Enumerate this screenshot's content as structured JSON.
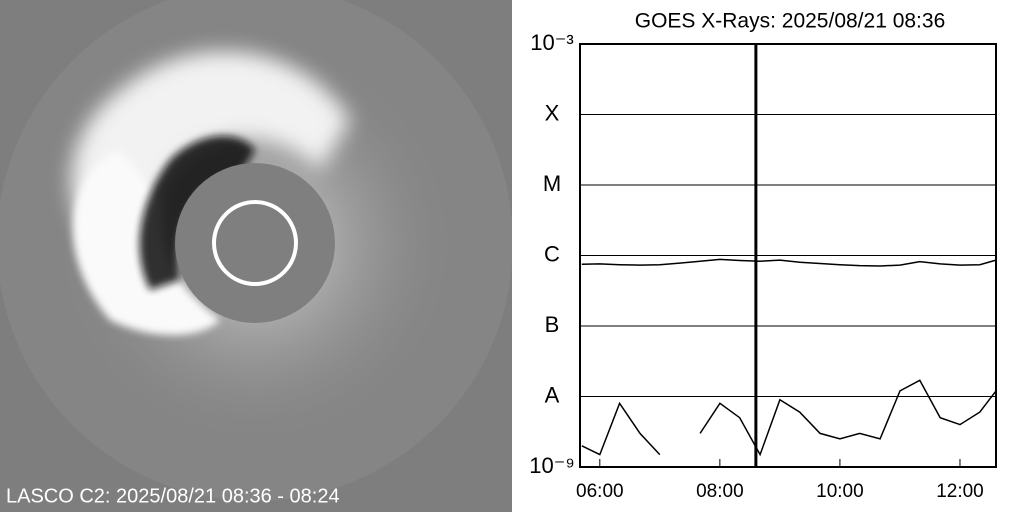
{
  "image_caption": "LASCO C2: 2025/08/21 08:36 - 08:24",
  "chart_data": {
    "type": "line",
    "title": "GOES X-Rays: 2025/08/21 08:36",
    "log_scale": true,
    "grid": true,
    "color": "#000000",
    "x": [
      5.7,
      6.0,
      6.33,
      6.67,
      7.0,
      7.33,
      7.67,
      8.0,
      8.33,
      8.67,
      9.0,
      9.33,
      9.67,
      10.0,
      10.33,
      10.67,
      11.0,
      11.33,
      11.67,
      12.0,
      12.33,
      12.6
    ],
    "series": [
      {
        "color": "#000000",
        "values": [
          7.5e-07,
          7.6e-07,
          7.4e-07,
          7.3e-07,
          7.4e-07,
          7.8e-07,
          8.3e-07,
          8.8e-07,
          8.5e-07,
          8.3e-07,
          8.6e-07,
          8e-07,
          7.7e-07,
          7.4e-07,
          7.2e-07,
          7.1e-07,
          7.3e-07,
          8.2e-07,
          7.6e-07,
          7.3e-07,
          7.4e-07,
          8.6e-07
        ]
      },
      {
        "color": "#000000",
        "values": [
          2e-09,
          1.5e-09,
          8e-09,
          3e-09,
          1.5e-09,
          null,
          3e-09,
          8e-09,
          5e-09,
          1.5e-09,
          9e-09,
          6e-09,
          3e-09,
          2.5e-09,
          3e-09,
          2.5e-09,
          1.2e-08,
          1.7e-08,
          5e-09,
          4e-09,
          6e-09,
          1.2e-08
        ]
      }
    ],
    "marker_x": 8.6,
    "xlim": [
      5.67,
      12.6
    ],
    "xticks": [
      {
        "value": 6,
        "label": "06:00"
      },
      {
        "value": 8,
        "label": "08:00"
      },
      {
        "value": 10,
        "label": "10:00"
      },
      {
        "value": 12,
        "label": "12:00"
      }
    ],
    "ylim": [
      1e-09,
      0.001
    ],
    "yticks": [
      {
        "value": 1e-09,
        "label": "10⁻⁹"
      },
      {
        "value": 1e-08,
        "label": "A"
      },
      {
        "value": 1e-07,
        "label": "B"
      },
      {
        "value": 1e-06,
        "label": "C"
      },
      {
        "value": 1e-05,
        "label": "M"
      },
      {
        "value": 0.0001,
        "label": "X"
      },
      {
        "value": 0.001,
        "label": "10⁻³"
      }
    ]
  }
}
